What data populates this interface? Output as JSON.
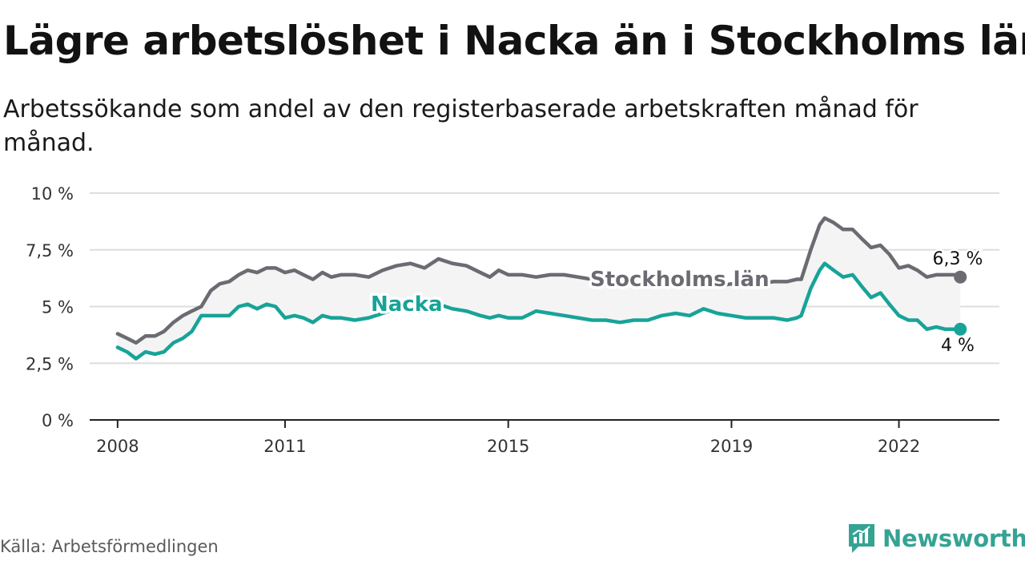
{
  "header": {
    "title": "Lägre arbetslöshet i Nacka än i Stockholms län",
    "subtitle": "Arbetssökande som andel av den registerbaserade arbetskraften månad för månad."
  },
  "footer": {
    "source": "Källa: Arbetsförmedlingen",
    "brand": "Newsworthy"
  },
  "colors": {
    "stockholm": "#6b6b72",
    "nacka": "#18a398",
    "band": "#f4f4f4",
    "grid": "#dddddd",
    "axis": "#222222"
  },
  "chart_data": {
    "type": "line",
    "title": "Lägre arbetslöshet i Nacka än i Stockholms län",
    "xlabel": "",
    "ylabel": "",
    "ylim": [
      0,
      10
    ],
    "xlim": [
      2007.5,
      2023.8
    ],
    "y_ticks": [
      0,
      2.5,
      5,
      7.5,
      10
    ],
    "y_tick_labels": [
      "0 %",
      "2,5 %",
      "5 %",
      "7,5 %",
      "10 %"
    ],
    "x_ticks": [
      2008,
      2011,
      2015,
      2019,
      2022
    ],
    "x_tick_labels": [
      "2008",
      "2011",
      "2015",
      "2019",
      "2022"
    ],
    "grid": true,
    "series": [
      {
        "name": "Stockholms län",
        "color": "#6b6b72",
        "end_label": "6,3 %",
        "points": [
          [
            2008.0,
            3.8
          ],
          [
            2008.17,
            3.6
          ],
          [
            2008.33,
            3.4
          ],
          [
            2008.5,
            3.7
          ],
          [
            2008.67,
            3.7
          ],
          [
            2008.83,
            3.9
          ],
          [
            2009.0,
            4.3
          ],
          [
            2009.17,
            4.6
          ],
          [
            2009.33,
            4.8
          ],
          [
            2009.5,
            5.0
          ],
          [
            2009.67,
            5.7
          ],
          [
            2009.83,
            6.0
          ],
          [
            2010.0,
            6.1
          ],
          [
            2010.17,
            6.4
          ],
          [
            2010.33,
            6.6
          ],
          [
            2010.5,
            6.5
          ],
          [
            2010.67,
            6.7
          ],
          [
            2010.83,
            6.7
          ],
          [
            2011.0,
            6.5
          ],
          [
            2011.17,
            6.6
          ],
          [
            2011.33,
            6.4
          ],
          [
            2011.5,
            6.2
          ],
          [
            2011.67,
            6.5
          ],
          [
            2011.83,
            6.3
          ],
          [
            2012.0,
            6.4
          ],
          [
            2012.25,
            6.4
          ],
          [
            2012.5,
            6.3
          ],
          [
            2012.75,
            6.6
          ],
          [
            2013.0,
            6.8
          ],
          [
            2013.25,
            6.9
          ],
          [
            2013.5,
            6.7
          ],
          [
            2013.75,
            7.1
          ],
          [
            2014.0,
            6.9
          ],
          [
            2014.25,
            6.8
          ],
          [
            2014.5,
            6.5
          ],
          [
            2014.67,
            6.3
          ],
          [
            2014.83,
            6.6
          ],
          [
            2015.0,
            6.4
          ],
          [
            2015.25,
            6.4
          ],
          [
            2015.5,
            6.3
          ],
          [
            2015.75,
            6.4
          ],
          [
            2016.0,
            6.4
          ],
          [
            2016.25,
            6.3
          ],
          [
            2016.5,
            6.2
          ],
          [
            2016.75,
            6.1
          ],
          [
            2017.0,
            6.1
          ],
          [
            2017.25,
            6.0
          ],
          [
            2017.5,
            6.0
          ],
          [
            2017.75,
            6.1
          ],
          [
            2018.0,
            6.1
          ],
          [
            2018.25,
            6.0
          ],
          [
            2018.5,
            6.0
          ],
          [
            2018.75,
            5.9
          ],
          [
            2019.0,
            6.0
          ],
          [
            2019.25,
            5.9
          ],
          [
            2019.5,
            6.0
          ],
          [
            2019.75,
            6.1
          ],
          [
            2020.0,
            6.1
          ],
          [
            2020.17,
            6.2
          ],
          [
            2020.25,
            6.2
          ],
          [
            2020.42,
            7.5
          ],
          [
            2020.58,
            8.6
          ],
          [
            2020.67,
            8.9
          ],
          [
            2020.83,
            8.7
          ],
          [
            2021.0,
            8.4
          ],
          [
            2021.17,
            8.4
          ],
          [
            2021.33,
            8.0
          ],
          [
            2021.5,
            7.6
          ],
          [
            2021.67,
            7.7
          ],
          [
            2021.83,
            7.3
          ],
          [
            2022.0,
            6.7
          ],
          [
            2022.17,
            6.8
          ],
          [
            2022.33,
            6.6
          ],
          [
            2022.5,
            6.3
          ],
          [
            2022.67,
            6.4
          ],
          [
            2022.83,
            6.4
          ],
          [
            2023.0,
            6.4
          ],
          [
            2023.1,
            6.3
          ]
        ]
      },
      {
        "name": "Nacka",
        "color": "#18a398",
        "end_label": "4 %",
        "points": [
          [
            2008.0,
            3.2
          ],
          [
            2008.17,
            3.0
          ],
          [
            2008.33,
            2.7
          ],
          [
            2008.5,
            3.0
          ],
          [
            2008.67,
            2.9
          ],
          [
            2008.83,
            3.0
          ],
          [
            2009.0,
            3.4
          ],
          [
            2009.17,
            3.6
          ],
          [
            2009.33,
            3.9
          ],
          [
            2009.5,
            4.6
          ],
          [
            2009.67,
            4.6
          ],
          [
            2009.83,
            4.6
          ],
          [
            2010.0,
            4.6
          ],
          [
            2010.17,
            5.0
          ],
          [
            2010.33,
            5.1
          ],
          [
            2010.5,
            4.9
          ],
          [
            2010.67,
            5.1
          ],
          [
            2010.83,
            5.0
          ],
          [
            2011.0,
            4.5
          ],
          [
            2011.17,
            4.6
          ],
          [
            2011.33,
            4.5
          ],
          [
            2011.5,
            4.3
          ],
          [
            2011.67,
            4.6
          ],
          [
            2011.83,
            4.5
          ],
          [
            2012.0,
            4.5
          ],
          [
            2012.25,
            4.4
          ],
          [
            2012.5,
            4.5
          ],
          [
            2012.75,
            4.7
          ],
          [
            2013.0,
            4.9
          ],
          [
            2013.25,
            4.9
          ],
          [
            2013.5,
            5.0
          ],
          [
            2013.75,
            5.1
          ],
          [
            2014.0,
            4.9
          ],
          [
            2014.25,
            4.8
          ],
          [
            2014.5,
            4.6
          ],
          [
            2014.67,
            4.5
          ],
          [
            2014.83,
            4.6
          ],
          [
            2015.0,
            4.5
          ],
          [
            2015.25,
            4.5
          ],
          [
            2015.5,
            4.8
          ],
          [
            2015.75,
            4.7
          ],
          [
            2016.0,
            4.6
          ],
          [
            2016.25,
            4.5
          ],
          [
            2016.5,
            4.4
          ],
          [
            2016.75,
            4.4
          ],
          [
            2017.0,
            4.3
          ],
          [
            2017.25,
            4.4
          ],
          [
            2017.5,
            4.4
          ],
          [
            2017.75,
            4.6
          ],
          [
            2018.0,
            4.7
          ],
          [
            2018.25,
            4.6
          ],
          [
            2018.5,
            4.9
          ],
          [
            2018.75,
            4.7
          ],
          [
            2019.0,
            4.6
          ],
          [
            2019.25,
            4.5
          ],
          [
            2019.5,
            4.5
          ],
          [
            2019.75,
            4.5
          ],
          [
            2020.0,
            4.4
          ],
          [
            2020.17,
            4.5
          ],
          [
            2020.25,
            4.6
          ],
          [
            2020.42,
            5.8
          ],
          [
            2020.58,
            6.6
          ],
          [
            2020.67,
            6.9
          ],
          [
            2020.83,
            6.6
          ],
          [
            2021.0,
            6.3
          ],
          [
            2021.17,
            6.4
          ],
          [
            2021.33,
            5.9
          ],
          [
            2021.5,
            5.4
          ],
          [
            2021.67,
            5.6
          ],
          [
            2021.83,
            5.1
          ],
          [
            2022.0,
            4.6
          ],
          [
            2022.17,
            4.4
          ],
          [
            2022.33,
            4.4
          ],
          [
            2022.5,
            4.0
          ],
          [
            2022.67,
            4.1
          ],
          [
            2022.83,
            4.0
          ],
          [
            2023.0,
            4.0
          ],
          [
            2023.1,
            4.0
          ]
        ]
      }
    ]
  }
}
